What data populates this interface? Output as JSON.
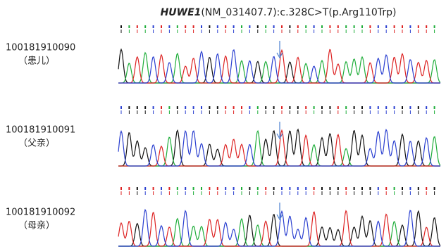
{
  "title": {
    "gene": "HUWE1",
    "variant": "(NM_031407.7):c.328C>T(p.Arg110Trp)"
  },
  "samples": [
    {
      "id": "100181910090",
      "relation": "（患儿）"
    },
    {
      "id": "100181910091",
      "relation": "（父亲）"
    },
    {
      "id": "100181910092",
      "relation": "（母亲）"
    }
  ]
}
